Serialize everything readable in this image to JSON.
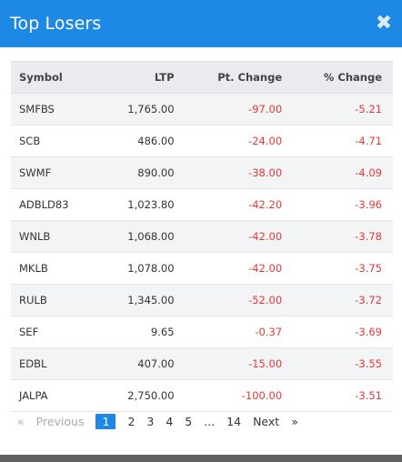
{
  "header": {
    "title": "Top Losers",
    "close_glyph": "✖"
  },
  "table": {
    "columns": [
      "Symbol",
      "LTP",
      "Pt. Change",
      "% Change"
    ],
    "rows": [
      {
        "symbol": "SMFBS",
        "ltp": "1,765.00",
        "pt": "-97.00",
        "pct": "-5.21"
      },
      {
        "symbol": "SCB",
        "ltp": "486.00",
        "pt": "-24.00",
        "pct": "-4.71"
      },
      {
        "symbol": "SWMF",
        "ltp": "890.00",
        "pt": "-38.00",
        "pct": "-4.09"
      },
      {
        "symbol": "ADBLD83",
        "ltp": "1,023.80",
        "pt": "-42.20",
        "pct": "-3.96"
      },
      {
        "symbol": "WNLB",
        "ltp": "1,068.00",
        "pt": "-42.00",
        "pct": "-3.78"
      },
      {
        "symbol": "MKLB",
        "ltp": "1,078.00",
        "pt": "-42.00",
        "pct": "-3.75"
      },
      {
        "symbol": "RULB",
        "ltp": "1,345.00",
        "pt": "-52.00",
        "pct": "-3.72"
      },
      {
        "symbol": "SEF",
        "ltp": "9.65",
        "pt": "-0.37",
        "pct": "-3.69"
      },
      {
        "symbol": "EDBL",
        "ltp": "407.00",
        "pt": "-15.00",
        "pct": "-3.55"
      },
      {
        "symbol": "JALPA",
        "ltp": "2,750.00",
        "pt": "-100.00",
        "pct": "-3.51"
      }
    ]
  },
  "pagination": {
    "prev_arrow": "«",
    "prev_label": "Previous",
    "pages": [
      "1",
      "2",
      "3",
      "4",
      "5"
    ],
    "ellipsis": "...",
    "last_page": "14",
    "next_label": "Next",
    "next_arrow": "»",
    "current_page": "1"
  },
  "colors": {
    "accent": "#1e88e5",
    "negative": "#e53935",
    "header_bg": "#e9ebee"
  }
}
